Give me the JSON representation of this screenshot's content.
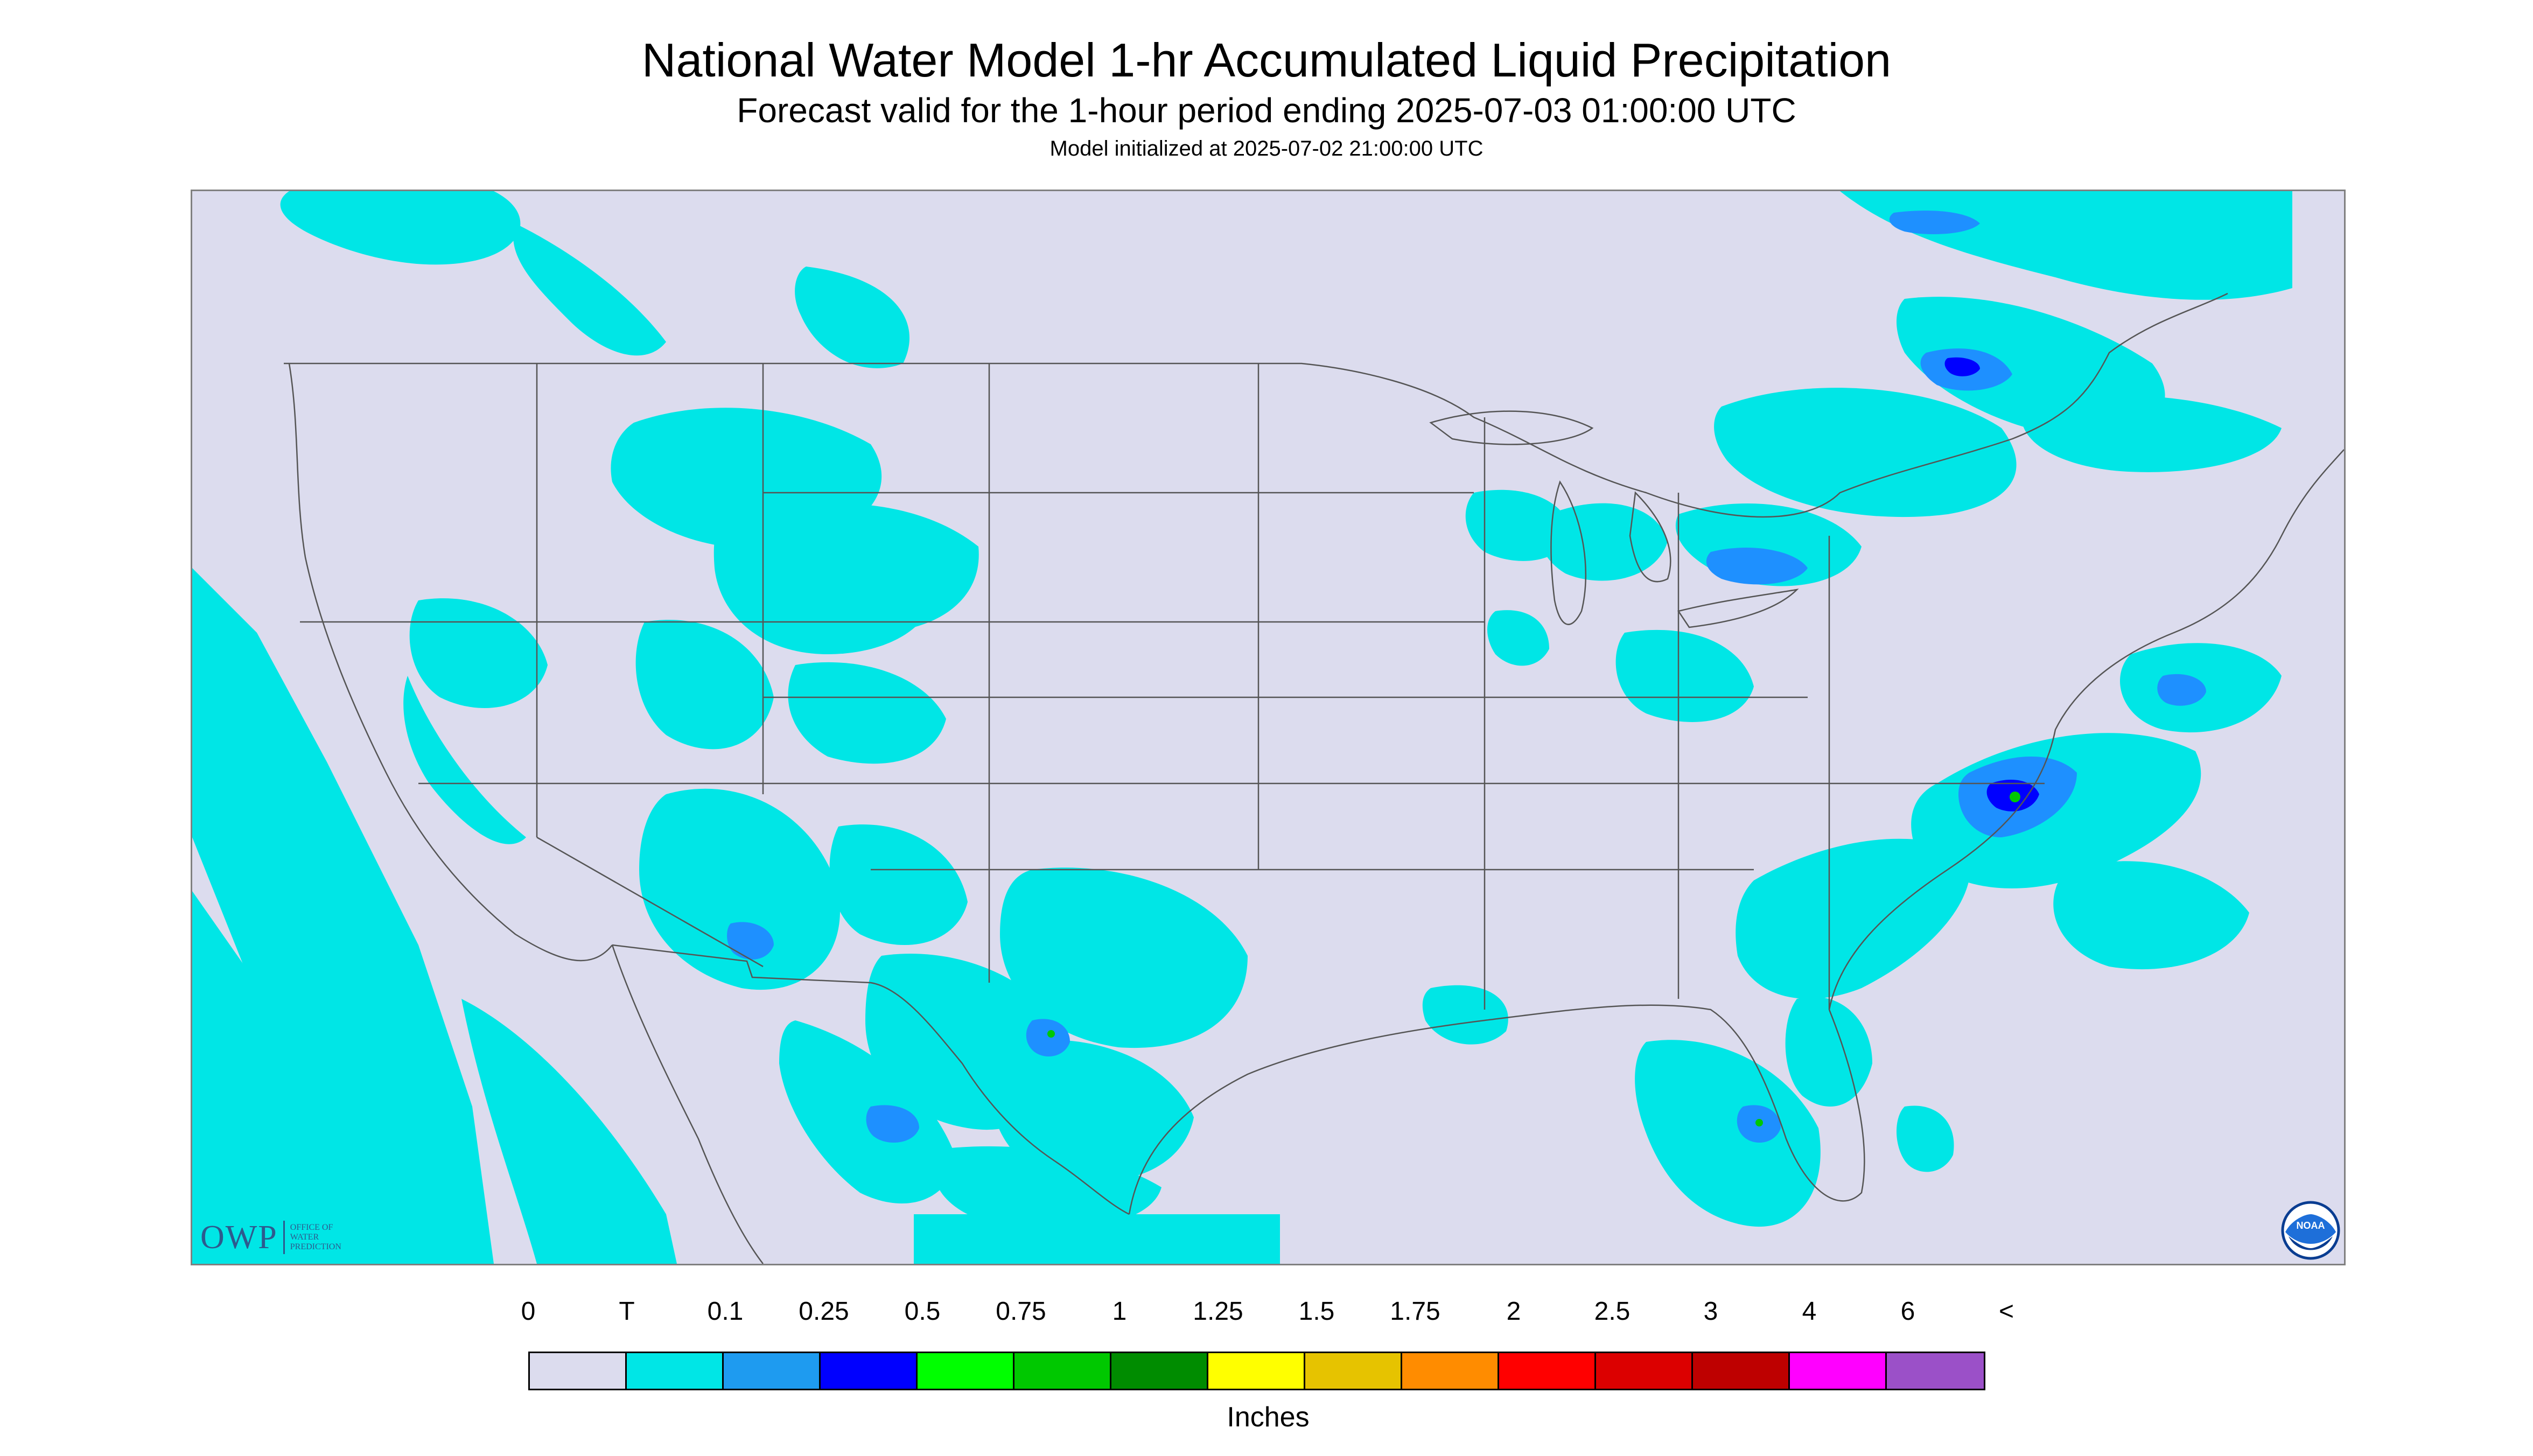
{
  "header": {
    "title": "National Water Model 1-hr Accumulated Liquid Precipitation",
    "subtitle": "Forecast valid for the 1-hour period ending 2025-07-03 01:00:00 UTC",
    "init_line": "Model initialized at 2025-07-02 21:00:00 UTC"
  },
  "map": {
    "background_color": "#dcdcee",
    "out_of_domain_color": "#dcdcee",
    "boundary_color": "#555555",
    "precip_light_color": "#00e6e6",
    "precip_moderate_color": "#1e90ff",
    "precip_heavy_color": "#0000ff",
    "precip_peak_color": "#00c800"
  },
  "logos": {
    "owp_letters": "OWP",
    "owp_text": "OFFICE OF\nWATER\nPREDICTION",
    "noaa_text": "NOAA"
  },
  "legend": {
    "labels": [
      "0",
      "T",
      "0.1",
      "0.25",
      "0.5",
      "0.75",
      "1",
      "1.25",
      "1.5",
      "1.75",
      "2",
      "2.5",
      "3",
      "4",
      "6",
      "<"
    ],
    "colors": [
      "#dcdcee",
      "#00e6e6",
      "#1e9bf0",
      "#0000ff",
      "#00ff00",
      "#00c800",
      "#008c00",
      "#ffff00",
      "#e6c300",
      "#ff8c00",
      "#ff0000",
      "#dc0000",
      "#be0000",
      "#ff00ff",
      "#9b50c8"
    ],
    "units": "Inches"
  }
}
